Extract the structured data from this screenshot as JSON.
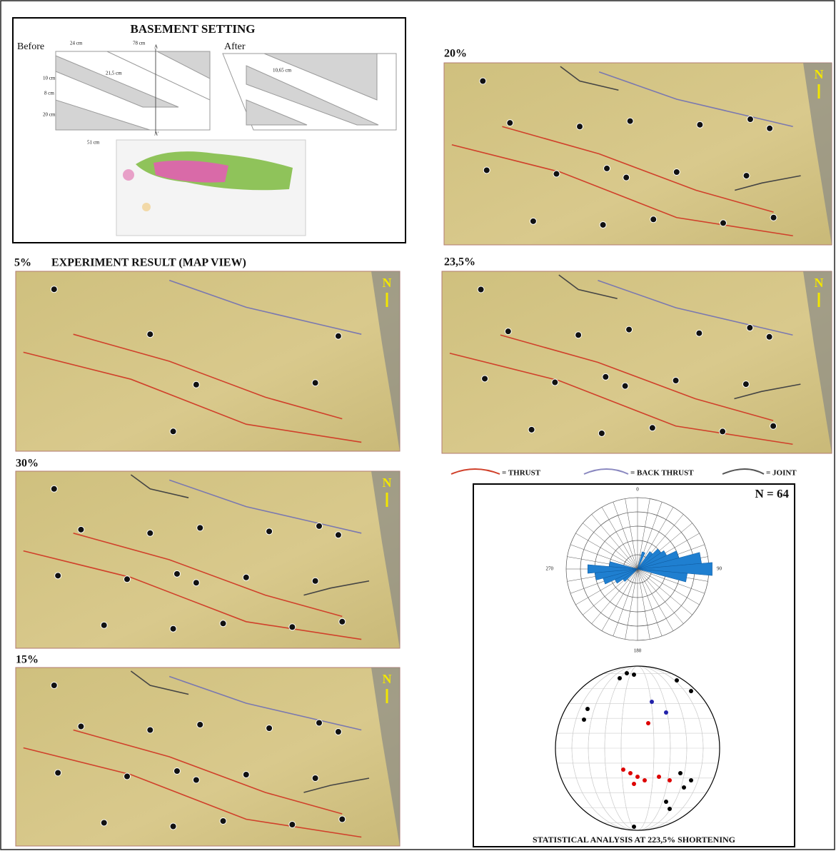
{
  "basement": {
    "title": "BASEMENT SETTING",
    "before": "Before",
    "after": "After",
    "dimensions": [
      "24 cm",
      "78 cm",
      "A",
      "A'",
      "21,5 cm",
      "10,65 cm",
      "10 cm",
      "8 cm",
      "20 cm",
      "51 cm"
    ]
  },
  "map_view_title": "EXPERIMENT RESULT (MAP VIEW)",
  "panels": [
    {
      "label": "5%"
    },
    {
      "label": "30%"
    },
    {
      "label": "15%"
    },
    {
      "label": "20%"
    },
    {
      "label": "23,5%"
    }
  ],
  "north": "N",
  "legend": [
    "= THRUST",
    "= BACK THRUST",
    "= JOINT"
  ],
  "stats": {
    "n": "N = 64",
    "rose_labels": [
      "0",
      "90",
      "180",
      "270"
    ],
    "caption": "STATISTICAL ANALYSIS AT 223,5% SHORTENING"
  }
}
